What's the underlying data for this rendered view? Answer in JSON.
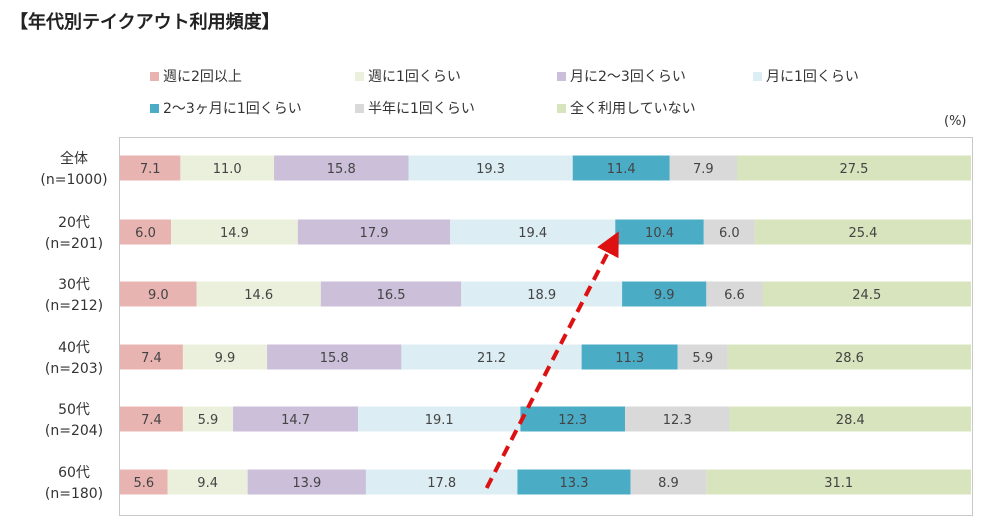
{
  "title": "【年代別テイクアウト利用頻度】",
  "unit": "(%)",
  "colors": [
    "#e8b4b2",
    "#eaf0dc",
    "#cbbfda",
    "#dcedf3",
    "#4bacc6",
    "#d9d9d9",
    "#d7e4bd"
  ],
  "chart_data": {
    "type": "bar",
    "orientation": "horizontal-stacked-100",
    "categories": [
      [
        "全体",
        "(n=1000)"
      ],
      [
        "20代",
        "(n=201)"
      ],
      [
        "30代",
        "(n=212)"
      ],
      [
        "40代",
        "(n=203)"
      ],
      [
        "50代",
        "(n=204)"
      ],
      [
        "60代",
        "(n=180)"
      ]
    ],
    "series": [
      {
        "name": "週に2回以上",
        "values": [
          7.1,
          6.0,
          9.0,
          7.4,
          7.4,
          5.6
        ]
      },
      {
        "name": "週に1回くらい",
        "values": [
          11.0,
          14.9,
          14.6,
          9.9,
          5.9,
          9.4
        ]
      },
      {
        "name": "月に2〜3回くらい",
        "values": [
          15.8,
          17.9,
          16.5,
          15.8,
          14.7,
          13.9
        ]
      },
      {
        "name": "月に1回くらい",
        "values": [
          19.3,
          19.4,
          18.9,
          21.2,
          19.1,
          17.8
        ]
      },
      {
        "name": "2〜3ヶ月に1回くらい",
        "values": [
          11.4,
          10.4,
          9.9,
          11.3,
          12.3,
          13.3
        ]
      },
      {
        "name": "半年に1回くらい",
        "values": [
          7.9,
          6.0,
          6.6,
          5.9,
          12.3,
          8.9
        ]
      },
      {
        "name": "全く利用していない",
        "values": [
          27.5,
          25.4,
          24.5,
          28.6,
          28.4,
          31.1
        ]
      }
    ],
    "xlim": [
      0,
      100
    ],
    "legend_position": "top",
    "annotation": "red dashed arrow from 60代 月に1回くらい segment up to 20代 2〜3ヶ月に1回くらい segment"
  }
}
